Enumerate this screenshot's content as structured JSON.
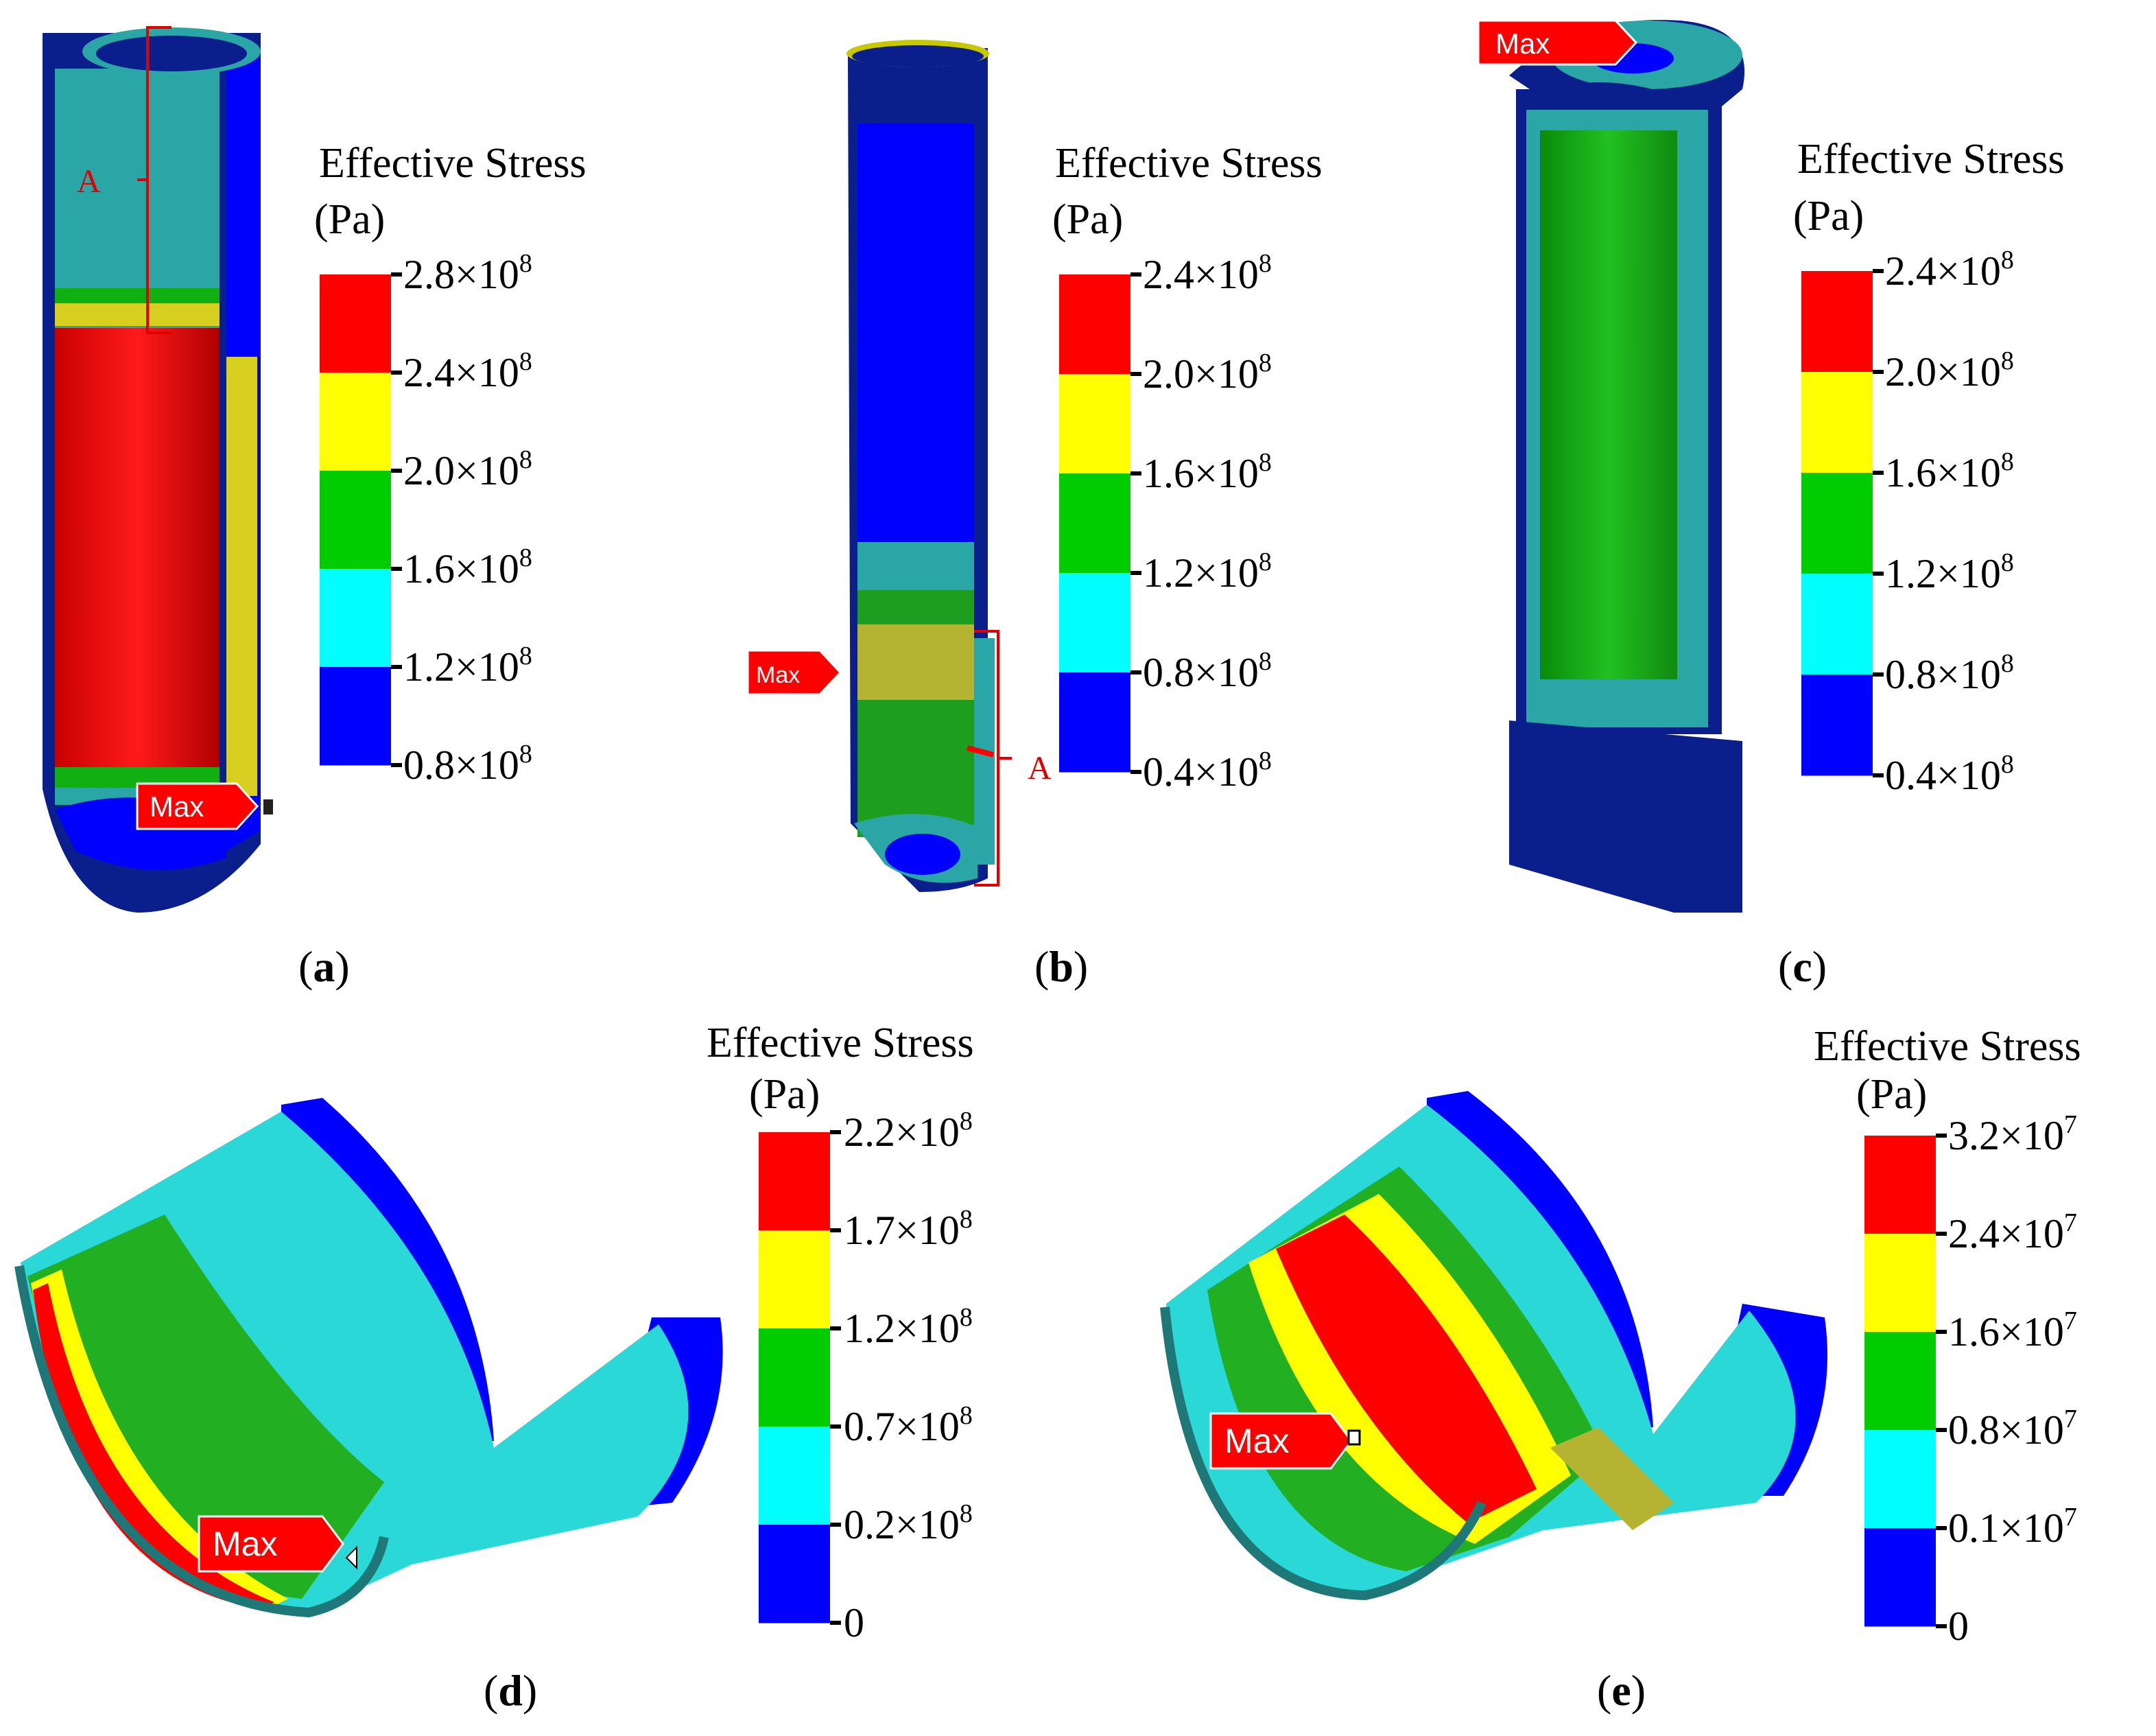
{
  "colors": {
    "red": "#ff0000",
    "yellow": "#ffff00",
    "green": "#00cc00",
    "cyan": "#00ffff",
    "blue": "#0000ff",
    "navy": "#0a1e8c",
    "teal": "#2aa6a6",
    "dark_red": "#c80000",
    "olive": "#b4b432"
  },
  "marker_label": "Max",
  "region_label": "A",
  "panels": [
    {
      "id": "a",
      "label": "a",
      "legend": {
        "title": "Effective Stress",
        "unit": "(Pa)",
        "ticks": [
          {
            "mant": "2.8×10",
            "exp": "8"
          },
          {
            "mant": "2.4×10",
            "exp": "8"
          },
          {
            "mant": "2.0×10",
            "exp": "8"
          },
          {
            "mant": "1.6×10",
            "exp": "8"
          },
          {
            "mant": "1.2×10",
            "exp": "8"
          },
          {
            "mant": "0.8×10",
            "exp": "8"
          }
        ]
      }
    },
    {
      "id": "b",
      "label": "b",
      "legend": {
        "title": "Effective Stress",
        "unit": "(Pa)",
        "ticks": [
          {
            "mant": "2.4×10",
            "exp": "8"
          },
          {
            "mant": "2.0×10",
            "exp": "8"
          },
          {
            "mant": "1.6×10",
            "exp": "8"
          },
          {
            "mant": "1.2×10",
            "exp": "8"
          },
          {
            "mant": "0.8×10",
            "exp": "8"
          },
          {
            "mant": "0.4×10",
            "exp": "8"
          }
        ]
      }
    },
    {
      "id": "c",
      "label": "c",
      "legend": {
        "title": "Effective Stress",
        "unit": "(Pa)",
        "ticks": [
          {
            "mant": "2.4×10",
            "exp": "8"
          },
          {
            "mant": "2.0×10",
            "exp": "8"
          },
          {
            "mant": "1.6×10",
            "exp": "8"
          },
          {
            "mant": "1.2×10",
            "exp": "8"
          },
          {
            "mant": "0.8×10",
            "exp": "8"
          },
          {
            "mant": "0.4×10",
            "exp": "8"
          }
        ]
      }
    },
    {
      "id": "d",
      "label": "d",
      "legend": {
        "title": "Effective Stress",
        "unit": "(Pa)",
        "ticks": [
          {
            "mant": "2.2×10",
            "exp": "8"
          },
          {
            "mant": "1.7×10",
            "exp": "8"
          },
          {
            "mant": "1.2×10",
            "exp": "8"
          },
          {
            "mant": "0.7×10",
            "exp": "8"
          },
          {
            "mant": "0.2×10",
            "exp": "8"
          },
          {
            "mant": "0",
            "exp": ""
          }
        ]
      }
    },
    {
      "id": "e",
      "label": "e",
      "legend": {
        "title": "Effective Stress",
        "unit": "(Pa)",
        "ticks": [
          {
            "mant": "3.2×10",
            "exp": "7"
          },
          {
            "mant": "2.4×10",
            "exp": "7"
          },
          {
            "mant": "1.6×10",
            "exp": "7"
          },
          {
            "mant": "0.8×10",
            "exp": "7"
          },
          {
            "mant": "0.1×10",
            "exp": "7"
          },
          {
            "mant": "0",
            "exp": ""
          }
        ]
      }
    }
  ]
}
